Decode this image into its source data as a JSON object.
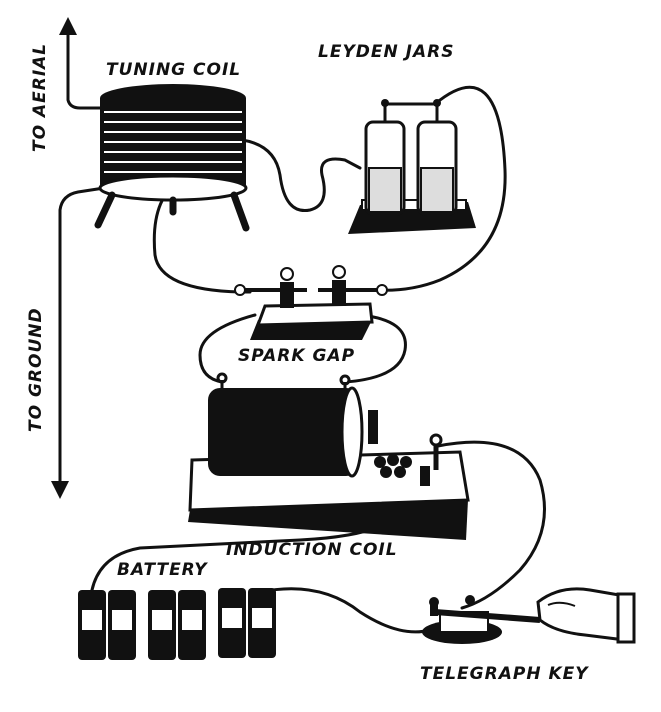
{
  "labels": {
    "tuning_coil": "TUNING COIL",
    "leyden_jars": "LEYDEN JARS",
    "to_aerial": "TO AERIAL",
    "to_ground": "TO GROUND",
    "spark_gap": "SPARK GAP",
    "induction_coil": "INDUCTION COIL",
    "battery": "BATTERY",
    "telegraph_key": "TELEGRAPH KEY"
  },
  "colors": {
    "ink": "#111111",
    "paper": "#ffffff",
    "highlight": "#dddddd"
  }
}
